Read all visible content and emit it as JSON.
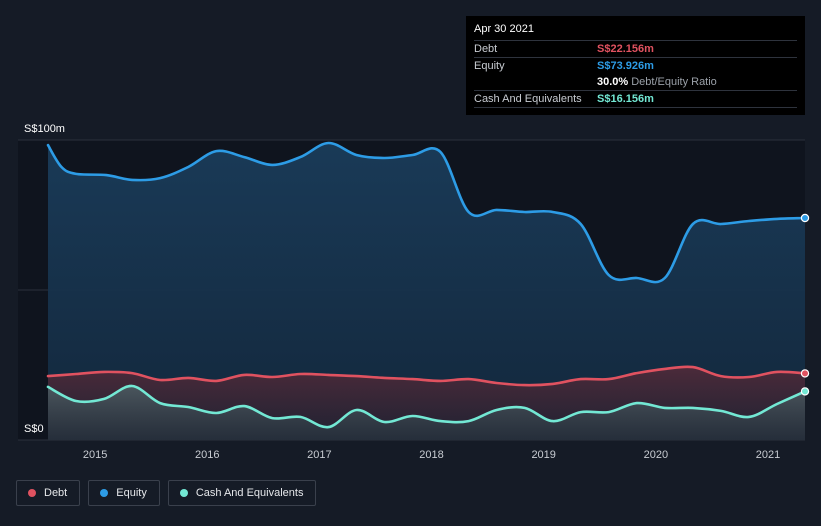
{
  "tooltip": {
    "date": "Apr 30 2021",
    "rows": [
      {
        "label": "Debt",
        "value": "S$22.156m",
        "color": "#e05260"
      },
      {
        "label": "Equity",
        "value": "S$73.926m",
        "color": "#2d9ce6"
      },
      {
        "ratio_value": "30.0%",
        "ratio_text": "Debt/Equity Ratio"
      },
      {
        "label": "Cash And Equivalents",
        "value": "S$16.156m",
        "color": "#73e8d4"
      }
    ]
  },
  "legend": [
    {
      "label": "Debt",
      "color": "#e05260"
    },
    {
      "label": "Equity",
      "color": "#2d9ce6"
    },
    {
      "label": "Cash And Equivalents",
      "color": "#73e8d4"
    }
  ],
  "chart_data": {
    "type": "area",
    "x_unit": "year",
    "xlim": [
      2014.58,
      2021.33
    ],
    "ylim": [
      0,
      100
    ],
    "y_tick_labels": [
      {
        "value": 100,
        "label": "S$100m"
      },
      {
        "value": 0,
        "label": "S$0"
      }
    ],
    "grid_values": [
      100,
      50,
      0
    ],
    "x_ticks": [
      "2015",
      "2016",
      "2017",
      "2018",
      "2019",
      "2020",
      "2021"
    ],
    "series": [
      {
        "name": "Equity",
        "color": "#2d9ce6",
        "x": [
          2014.58,
          2014.7,
          2014.83,
          2015.1,
          2015.33,
          2015.58,
          2015.83,
          2016.08,
          2016.33,
          2016.58,
          2016.83,
          2017.08,
          2017.33,
          2017.58,
          2017.83,
          2018.08,
          2018.33,
          2018.58,
          2018.83,
          2019.08,
          2019.33,
          2019.58,
          2019.83,
          2020.08,
          2020.33,
          2020.58,
          2020.83,
          2021.08,
          2021.33
        ],
        "y": [
          98.3,
          91,
          88.7,
          88.3,
          86.7,
          87.3,
          91,
          96.3,
          94.3,
          91.7,
          94.3,
          99,
          95,
          94,
          95,
          96,
          76,
          76.7,
          76,
          76,
          72,
          55,
          54,
          54,
          72,
          72,
          73,
          73.7,
          74
        ]
      },
      {
        "name": "Debt",
        "color": "#e05260",
        "x": [
          2014.58,
          2014.83,
          2015.08,
          2015.33,
          2015.58,
          2015.83,
          2016.08,
          2016.33,
          2016.58,
          2016.83,
          2017.08,
          2017.33,
          2017.58,
          2017.83,
          2018.08,
          2018.33,
          2018.58,
          2018.83,
          2019.08,
          2019.33,
          2019.58,
          2019.83,
          2020.08,
          2020.33,
          2020.58,
          2020.83,
          2021.08,
          2021.33
        ],
        "y": [
          21.3,
          22,
          22.7,
          22.3,
          20,
          20.7,
          19.7,
          21.7,
          21,
          22,
          21.7,
          21.3,
          20.7,
          20.3,
          19.7,
          20.3,
          19,
          18.3,
          18.7,
          20.3,
          20.3,
          22.3,
          23.7,
          24.3,
          21.3,
          21,
          22.7,
          22.2
        ]
      },
      {
        "name": "Cash And Equivalents",
        "color": "#73e8d4",
        "x": [
          2014.58,
          2014.83,
          2015.08,
          2015.33,
          2015.58,
          2015.83,
          2016.08,
          2016.33,
          2016.58,
          2016.83,
          2017.08,
          2017.33,
          2017.58,
          2017.83,
          2018.08,
          2018.33,
          2018.58,
          2018.83,
          2019.08,
          2019.33,
          2019.58,
          2019.83,
          2020.08,
          2020.33,
          2020.58,
          2020.83,
          2021.08,
          2021.33
        ],
        "y": [
          17.7,
          13,
          13.7,
          18,
          12.3,
          11,
          9,
          11.3,
          7.3,
          7.7,
          4.3,
          10,
          6,
          8,
          6.3,
          6.3,
          10,
          10.7,
          6.3,
          9.3,
          9.3,
          12.3,
          10.7,
          10.7,
          9.7,
          7.7,
          12,
          16.2
        ]
      }
    ]
  }
}
